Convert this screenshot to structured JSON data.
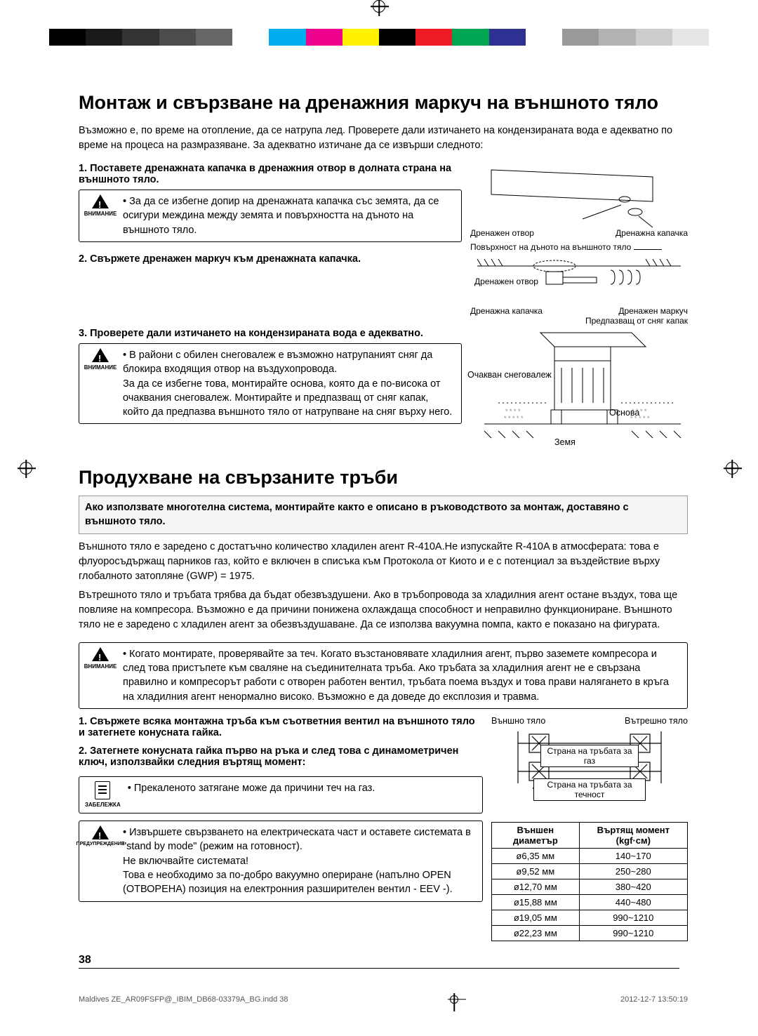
{
  "colorbar": [
    "#000000",
    "#1a1a1a",
    "#333333",
    "#4d4d4d",
    "#666666",
    "#ffffff",
    "#00aeef",
    "#ec008c",
    "#fff200",
    "#000000",
    "#ed1c24",
    "#00a651",
    "#2e3192",
    "#ffffff",
    "#999999",
    "#b3b3b3",
    "#cccccc",
    "#e6e6e6"
  ],
  "h1": "Монтаж и свързване на дренажния маркуч на външното тяло",
  "intro1": "Възможно е, по време на отопление, да се натрупа лед. Проверете дали изтичането на кондензираната вода е адекватно по време на процеса на размразяване.  За адекватно изтичане да се извърши следното:",
  "step1": "1.   Поставете дренажната капачка в дренажния отвор в долната страна на външното тяло.",
  "warn1": "За да се избегне допир на дренажната капачка със земята, да се осигури междина между земята и повърхността на дъното на външното тяло.",
  "step2": "2.   Свържете дренажен маркуч към дренажната капачка.",
  "step3": "3.   Проверете дали изтичането на кондензираната вода е адекватно.",
  "warn2a": "В райони с обилен снеговалеж е възможно натрупаният сняг да блокира входящия отвор на въздухопровода.",
  "warn2b": "За да се избегне това, монтирайте основа, която да е по-висока от очаквания снеговалеж. Монтирайте и предпазващ от сняг капак, който да предпазва външното тяло от натрупване на сняг върху него.",
  "diag1": {
    "drenOtvor": "Дренажен отвор",
    "drenKap": "Дренажна капачка",
    "povarh": "Повърхност на дъното на външното тяло",
    "drenMark": "Дренажен маркуч",
    "predp": "Предпазващ от сняг капак",
    "ochak": "Очакван снеговалеж",
    "osnova": "Основа",
    "zemia": "Земя"
  },
  "h2": "Продухване на свързаните тръби",
  "call1": "Ако използвате многотелна система, монтирайте както е описано в ръководството за монтаж, доставяно с външното тяло.",
  "p2a": "Външното тяло е заредено с достатъчно количество хладилен агент R-410A.Не изпускайте R-410A в атмосферата: това е флуоросъдържащ парников газ, който е включен в списъка към Протокола от Киото и е с потенциал за въздействие върху глобалното затопляне (GWP) = 1975.",
  "p2b": "Вътрешното тяло и тръбата трябва да бъдат обезвъздушени. Ако в тръбопровода за хладилния агент остане въздух, това ще повлияе на компресора. Възможно е да причини понижена охлаждаща способност и неправилно функциониране. Външното тяло не е заредено с хладилен агент за обезвъздушаване. Да се използва вакуумна помпа, както е показано на фигурата.",
  "warn3": "Когато монтирате, проверявайте за теч. Когато възстановявате хладилния агент, първо заземете компресора и след това пристъпете към сваляне на съединителната тръба. Ако тръбата за хладилния агент не е свързана правилно и компресорът работи с отворен работен вентил, тръбата поема въздух и това прави налягането в кръга на хладилния агент ненормално високо. Възможно е да доведе до експлозия и травма.",
  "step4": "1.   Свържете всяка монтажна тръба към съответния вентил на външното тяло и затегнете конусната гайка.",
  "step5": "2.   Затегнете конусната гайка първо на ръка и след това с динамометричен ключ, използвайки следния въртящ момент:",
  "note1": "Прекаленото затягане може да причини теч на газ.",
  "warn4a": "Извършете свързването на електрическата част и оставете системата в \"stand by mode\" (режим на готовност).",
  "warn4b": "Не включвайте системата!",
  "warn4c": "Това е необходимо за по-добро вакуумно опериране (напълно OPEN (ОТВОРЕНА) позиция на електронния разширителен вентил  - EEV -).",
  "diag2": {
    "out": "Външно тяло",
    "in": "Вътрешно тяло",
    "gas": "Страна на тръбата за газ",
    "liq": "Страна на тръбата за течност"
  },
  "table": {
    "h1": "Външен диаметър",
    "h2": "Въртящ момент (kgf·см)",
    "rows": [
      [
        "ø6,35 мм",
        "140~170"
      ],
      [
        "ø9,52 мм",
        "250~280"
      ],
      [
        "ø12,70 мм",
        "380~420"
      ],
      [
        "ø15,88 мм",
        "440~480"
      ],
      [
        "ø19,05 мм",
        "990~1210"
      ],
      [
        "ø22,23 мм",
        "990~1210"
      ]
    ]
  },
  "symLabels": {
    "vnim": "ВНИМАНИЕ",
    "zab": "ЗАБЕЛЕЖКА",
    "pred": "ПРЕДУПРЕЖДЕНИЕ"
  },
  "pageNum": "38",
  "footer": {
    "l": "Maldives ZE_AR09FSFP@_IBIM_DB68-03379A_BG.indd   38",
    "r": "2012-12-7   13:50:19"
  }
}
